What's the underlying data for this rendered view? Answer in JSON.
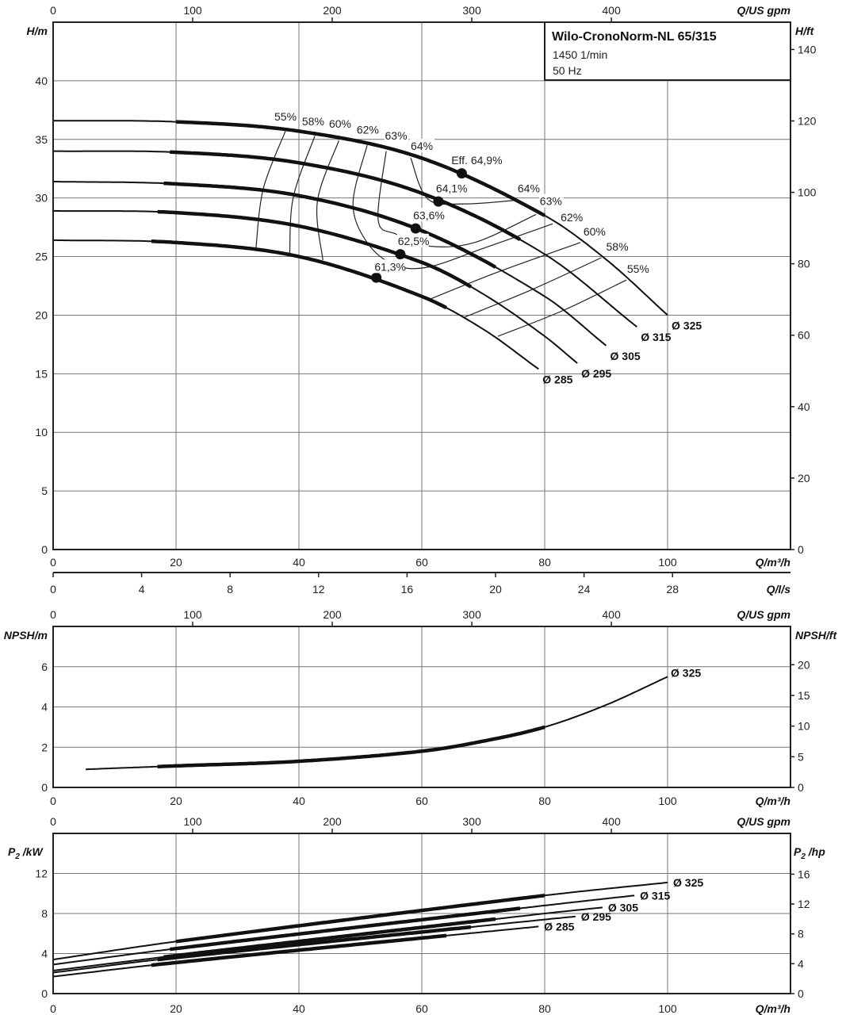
{
  "info_box": {
    "title": "Wilo-CronoNorm-NL 65/315",
    "speed": "1450 1/min",
    "frequency": "50 Hz"
  },
  "colors": {
    "curve": "#111111",
    "grid": "#777777",
    "background": "#ffffff"
  },
  "axes": {
    "q_gpm": {
      "title": "Q/US gpm",
      "ticks": [
        0,
        100,
        200,
        300,
        400
      ]
    },
    "q_m3h": {
      "title": "Q/m³/h",
      "ticks": [
        0,
        20,
        40,
        60,
        80,
        100
      ],
      "range": [
        0,
        120
      ]
    },
    "q_ls": {
      "title": "Q/l/s",
      "ticks": [
        0,
        4,
        8,
        12,
        16,
        20,
        24,
        28
      ]
    },
    "h_m": {
      "title": "H/m",
      "ticks": [
        0,
        5,
        10,
        15,
        20,
        25,
        30,
        35,
        40
      ],
      "range": [
        0,
        45
      ]
    },
    "h_ft": {
      "title": "H/ft",
      "ticks": [
        0,
        20,
        40,
        60,
        80,
        100,
        120,
        140
      ]
    },
    "npsh_m": {
      "title": "NPSH/m",
      "ticks": [
        0,
        2,
        4,
        6
      ],
      "range": [
        0,
        8
      ]
    },
    "npsh_ft": {
      "title": "NPSH/ft",
      "ticks": [
        0,
        5,
        10,
        15,
        20
      ]
    },
    "p2_kw": {
      "title_symbol": "P",
      "title_sub": "2",
      "title_unit": " /kW",
      "ticks": [
        0,
        4,
        8,
        12
      ],
      "range": [
        0,
        16
      ]
    },
    "p2_hp": {
      "title_symbol": "P",
      "title_sub": "2",
      "title_unit": " /hp",
      "ticks": [
        0,
        4,
        8,
        12,
        16
      ]
    }
  },
  "chart_data": [
    {
      "type": "line",
      "name_key": "head",
      "xlabel": "Q/m³/h",
      "ylabel": "H/m",
      "xlim": [
        0,
        120
      ],
      "ylim": [
        0,
        45
      ],
      "grid": true,
      "series": [
        {
          "name": "Ø 325",
          "points": [
            [
              0,
              36.6
            ],
            [
              20,
              36.5
            ],
            [
              40,
              35.7
            ],
            [
              60,
              33.4
            ],
            [
              80,
              28.5
            ],
            [
              90,
              24.75
            ],
            [
              100,
              20.0
            ]
          ],
          "thick_range": [
            20,
            80
          ]
        },
        {
          "name": "Ø 315",
          "points": [
            [
              0,
              34.0
            ],
            [
              20,
              33.9
            ],
            [
              40,
              33.0
            ],
            [
              60,
              30.4
            ],
            [
              80,
              25.2
            ],
            [
              95,
              19.0
            ]
          ],
          "thick_range": [
            19,
            76
          ]
        },
        {
          "name": "Ø 305",
          "points": [
            [
              0,
              31.4
            ],
            [
              20,
              31.2
            ],
            [
              40,
              30.2
            ],
            [
              60,
              27.2
            ],
            [
              80,
              21.6
            ],
            [
              90,
              17.4
            ]
          ],
          "thick_range": [
            18,
            72
          ]
        },
        {
          "name": "Ø 295",
          "points": [
            [
              0,
              28.9
            ],
            [
              20,
              28.75
            ],
            [
              40,
              27.6
            ],
            [
              60,
              24.5
            ],
            [
              70,
              21.8
            ],
            [
              80,
              18.2
            ],
            [
              85.3,
              15.9
            ]
          ],
          "thick_range": [
            17,
            68
          ]
        },
        {
          "name": "Ø 285",
          "points": [
            [
              0,
              26.4
            ],
            [
              20,
              26.2
            ],
            [
              40,
              25.0
            ],
            [
              60,
              21.6
            ],
            [
              70,
              18.8
            ],
            [
              79,
              15.4
            ]
          ],
          "thick_range": [
            16,
            64
          ]
        }
      ],
      "best_efficiency_points": [
        {
          "label": "Eff.  64,9%",
          "q": 66.5,
          "h": 32.1,
          "label_at": [
            64.8,
            32.9
          ]
        },
        {
          "label": "64,1%",
          "q": 62.7,
          "h": 29.7,
          "label_at": [
            62.3,
            30.5
          ]
        },
        {
          "label": "63,6%",
          "q": 59.0,
          "h": 27.4,
          "label_at": [
            58.6,
            28.2
          ]
        },
        {
          "label": "62,5%",
          "q": 56.5,
          "h": 25.2,
          "label_at": [
            56.1,
            26.0
          ]
        },
        {
          "label": "61,3%",
          "q": 52.6,
          "h": 23.2,
          "label_at": [
            52.3,
            23.8
          ]
        }
      ],
      "efficiency_lines": [
        {
          "eff": "55%",
          "points": [
            [
              37.8,
              35.7
            ],
            [
              34.2,
              30.8
            ],
            [
              33.0,
              25.7
            ]
          ]
        },
        {
          "eff": "58%",
          "points": [
            [
              42.6,
              35.3
            ],
            [
              39.1,
              30.1
            ],
            [
              38.5,
              25.3
            ]
          ]
        },
        {
          "eff": "60%",
          "points": [
            [
              46.5,
              34.9
            ],
            [
              43.0,
              29.7
            ],
            [
              43.9,
              24.7
            ]
          ]
        },
        {
          "eff": "62%",
          "points": [
            [
              51.1,
              34.5
            ],
            [
              48.8,
              29.5
            ],
            [
              51.1,
              26.2
            ],
            [
              55.5,
              24.3
            ],
            [
              61,
              24.1
            ],
            [
              70,
              25.7
            ],
            [
              81.3,
              27.8
            ]
          ]
        },
        {
          "eff": "63%",
          "points": [
            [
              54.2,
              34.0
            ],
            [
              52.9,
              28.1
            ],
            [
              55.9,
              26.9
            ],
            [
              61,
              25.9
            ],
            [
              68.6,
              26.2
            ],
            [
              78.6,
              28.6
            ]
          ]
        },
        {
          "eff": "64%",
          "points": [
            [
              58.2,
              33.4
            ],
            [
              61,
              29.9
            ],
            [
              67,
              29.5
            ],
            [
              75.2,
              29.8
            ]
          ]
        },
        {
          "eff": "60%",
          "points": [
            [
              61,
              21.3
            ],
            [
              72,
              23.6
            ],
            [
              85.8,
              26.2
            ]
          ]
        },
        {
          "eff": "58%",
          "points": [
            [
              66.8,
              19.8
            ],
            [
              78,
              22.2
            ],
            [
              89.2,
              24.9
            ]
          ]
        },
        {
          "eff": "55%",
          "points": [
            [
              72.4,
              18.2
            ],
            [
              83,
              20.4
            ],
            [
              93.3,
              23.0
            ]
          ]
        }
      ],
      "efficiency_labels": [
        {
          "text": "55%",
          "at": [
            36.0,
            36.6
          ]
        },
        {
          "text": "58%",
          "at": [
            40.5,
            36.2
          ]
        },
        {
          "text": "60%",
          "at": [
            44.9,
            36.0
          ]
        },
        {
          "text": "62%",
          "at": [
            49.4,
            35.5
          ]
        },
        {
          "text": "63%",
          "at": [
            54.0,
            35.0
          ]
        },
        {
          "text": "64%",
          "at": [
            58.2,
            34.1
          ]
        },
        {
          "text": "64%",
          "at": [
            75.6,
            30.5
          ]
        },
        {
          "text": "63%",
          "at": [
            79.2,
            29.4
          ]
        },
        {
          "text": "62%",
          "at": [
            82.6,
            28.0
          ]
        },
        {
          "text": "60%",
          "at": [
            86.3,
            26.8
          ]
        },
        {
          "text": "58%",
          "at": [
            90.0,
            25.5
          ]
        },
        {
          "text": "55%",
          "at": [
            93.4,
            23.6
          ]
        }
      ]
    },
    {
      "type": "line",
      "name_key": "npsh",
      "xlabel": "Q/m³/h",
      "ylabel": "NPSH/m",
      "xlim": [
        0,
        120
      ],
      "ylim": [
        0,
        8
      ],
      "grid": true,
      "series": [
        {
          "name": "Ø 325",
          "points": [
            [
              5.3,
              0.9
            ],
            [
              20,
              1.07
            ],
            [
              40,
              1.3
            ],
            [
              60,
              1.8
            ],
            [
              70,
              2.3
            ],
            [
              80,
              3.0
            ],
            [
              90,
              4.1
            ],
            [
              100,
              5.5
            ]
          ],
          "thick_range": [
            17,
            80
          ]
        }
      ]
    },
    {
      "type": "line",
      "name_key": "power",
      "xlabel": "Q/m³/h",
      "ylabel": "P2 /kW",
      "xlim": [
        0,
        120
      ],
      "ylim": [
        0,
        16
      ],
      "grid": true,
      "series": [
        {
          "name": "Ø 325",
          "points": [
            [
              0,
              3.4
            ],
            [
              20,
              5.2
            ],
            [
              80,
              9.8
            ],
            [
              100,
              11.1
            ]
          ],
          "thick_range": [
            20,
            80
          ]
        },
        {
          "name": "Ø 315",
          "points": [
            [
              0,
              2.9
            ],
            [
              20,
              4.5
            ],
            [
              80,
              8.8
            ],
            [
              94.6,
              9.8
            ]
          ],
          "thick_range": [
            19,
            76
          ]
        },
        {
          "name": "Ø 305",
          "points": [
            [
              0,
              2.3
            ],
            [
              20,
              3.8
            ],
            [
              80,
              8.0
            ],
            [
              89.4,
              8.6
            ]
          ],
          "thick_range": [
            18,
            72
          ]
        },
        {
          "name": "Ø 295",
          "points": [
            [
              0,
              2.1
            ],
            [
              20,
              3.6
            ],
            [
              80,
              7.4
            ],
            [
              85,
              7.7
            ]
          ],
          "thick_range": [
            17,
            68
          ]
        },
        {
          "name": "Ø 285",
          "points": [
            [
              0,
              1.7
            ],
            [
              20,
              3.1
            ],
            [
              79,
              6.7
            ]
          ],
          "thick_range": [
            16,
            64
          ]
        }
      ]
    }
  ]
}
